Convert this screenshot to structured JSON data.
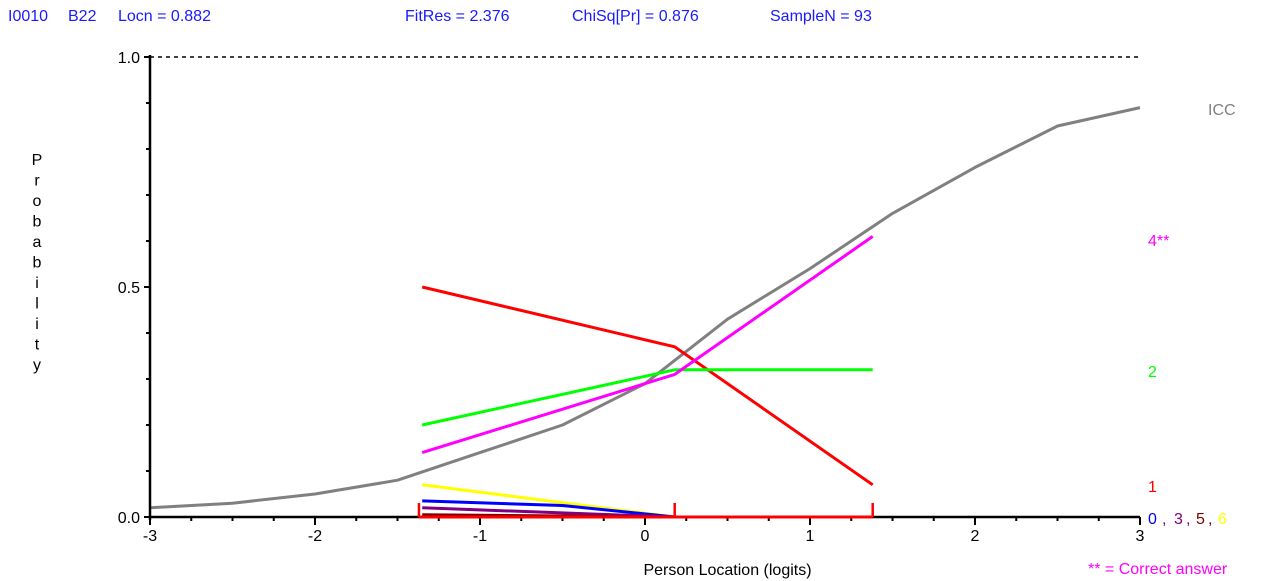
{
  "header": {
    "item": "I0010",
    "code": "B22",
    "locn": "Locn = 0.882",
    "fitres": "FitRes = 2.376",
    "chisq": "ChiSq[Pr] = 0.876",
    "samplen": "SampleN = 93"
  },
  "colors": {
    "header_text": "#1a1aff",
    "icc": "#808080",
    "opt0": "#0000ff",
    "opt1": "#ff0000",
    "opt2": "#00ff00",
    "opt3": "#800080",
    "opt4": "#ff00ff",
    "opt5": "#800000",
    "opt6": "#ffff00",
    "footnote": "#ff00ff",
    "class_intervals": "#ff0000"
  },
  "labels": {
    "icc": "ICC",
    "opt4": "4**",
    "opt2": "2",
    "opt1": "1",
    "bottom_group": [
      "0",
      ", ",
      "3",
      ", ",
      "5",
      ", ",
      "6"
    ],
    "footnote": "** = Correct answer"
  },
  "chart_data": {
    "type": "line",
    "title": "",
    "xlabel": "Person Location (logits)",
    "ylabel": "Probability",
    "xlim": [
      -3,
      3
    ],
    "ylim": [
      0,
      1
    ],
    "x_ticks": [
      -3,
      -2,
      -1,
      0,
      1,
      2,
      3
    ],
    "x_tick_labels": [
      "-3",
      "-2",
      "-1",
      "0",
      "1",
      "2",
      "3"
    ],
    "y_ticks": [
      0,
      0.5,
      1
    ],
    "y_tick_labels": [
      "0.0",
      "0.5",
      "1.0"
    ],
    "reference_line": 1.0,
    "class_interval_boundaries": [
      -1.37,
      0.18,
      1.38
    ],
    "series": [
      {
        "name": "ICC",
        "color": "#808080",
        "points": [
          [
            -3,
            0.02
          ],
          [
            -2.5,
            0.03
          ],
          [
            -2,
            0.05
          ],
          [
            -1.5,
            0.08
          ],
          [
            -1,
            0.14
          ],
          [
            -0.5,
            0.2
          ],
          [
            0,
            0.29
          ],
          [
            0.5,
            0.43
          ],
          [
            1,
            0.54
          ],
          [
            1.5,
            0.66
          ],
          [
            2,
            0.76
          ],
          [
            2.5,
            0.85
          ],
          [
            3,
            0.89
          ]
        ]
      },
      {
        "name": "1",
        "color": "#ff0000",
        "points": [
          [
            -1.35,
            0.5
          ],
          [
            0.18,
            0.37
          ],
          [
            1.38,
            0.07
          ]
        ]
      },
      {
        "name": "2",
        "color": "#00ff00",
        "points": [
          [
            -1.35,
            0.2
          ],
          [
            0.18,
            0.32
          ],
          [
            1.38,
            0.32
          ]
        ]
      },
      {
        "name": "4**",
        "color": "#ff00ff",
        "points": [
          [
            -1.35,
            0.14
          ],
          [
            0.18,
            0.31
          ],
          [
            1.38,
            0.61
          ]
        ]
      },
      {
        "name": "6",
        "color": "#ffff00",
        "points": [
          [
            -1.35,
            0.07
          ],
          [
            0.18,
            0.0
          ],
          [
            1.38,
            0.0
          ]
        ]
      },
      {
        "name": "0",
        "color": "#0000ff",
        "points": [
          [
            -1.35,
            0.035
          ],
          [
            -0.5,
            0.025
          ],
          [
            0.18,
            0.0
          ]
        ]
      },
      {
        "name": "3",
        "color": "#800080",
        "points": [
          [
            -1.35,
            0.02
          ],
          [
            0.18,
            0.0
          ]
        ]
      },
      {
        "name": "5",
        "color": "#800000",
        "points": [
          [
            -1.35,
            0.005
          ],
          [
            0.18,
            0.0
          ]
        ]
      }
    ]
  }
}
